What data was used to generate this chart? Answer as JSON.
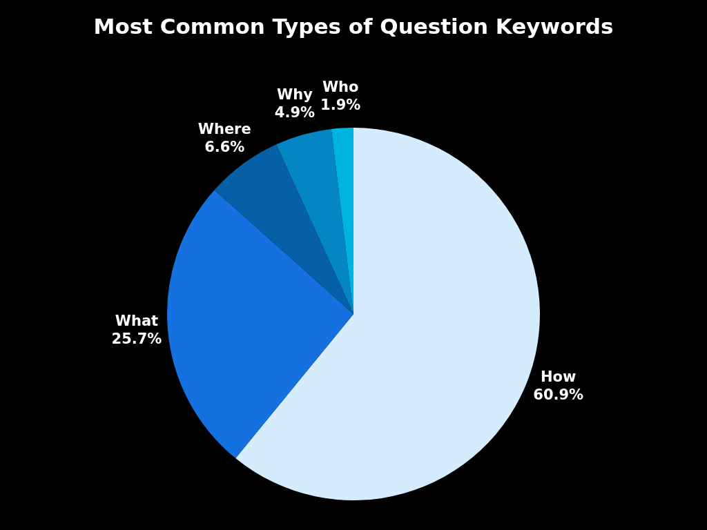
{
  "chart_data": {
    "type": "pie",
    "title": "Most Common Types of Question Keywords",
    "categories": [
      "How",
      "What",
      "Where",
      "Why",
      "Who"
    ],
    "values": [
      60.9,
      25.7,
      6.6,
      4.9,
      1.9
    ],
    "value_labels": [
      "60.9%",
      "25.7%",
      "6.6%",
      "4.9%",
      "1.9%"
    ],
    "colors": [
      "#d4ecfc",
      "#1570e0",
      "#0560a8",
      "#0586c4",
      "#00b4e0"
    ],
    "legend": false
  }
}
